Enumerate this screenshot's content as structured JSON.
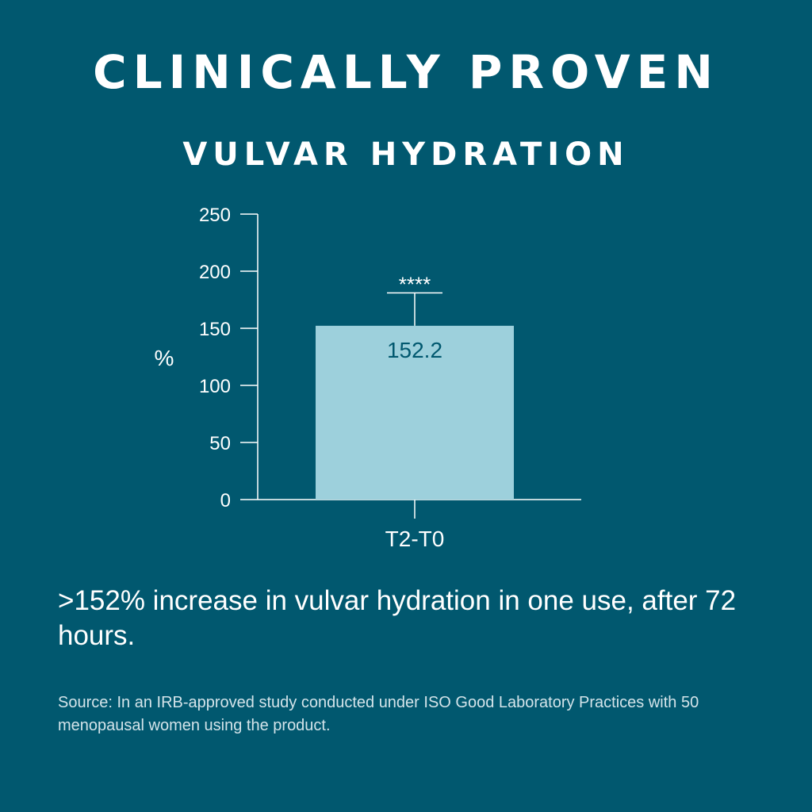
{
  "headline": "CLINICALLY PROVEN",
  "chart_data": {
    "type": "bar",
    "title": "VULVAR HYDRATION",
    "ylabel": "%",
    "xlabel": "",
    "categories": [
      "T2-T0"
    ],
    "values": [
      152.2
    ],
    "value_labels": [
      "152.2"
    ],
    "error_bar_top": [
      181
    ],
    "significance": [
      "****"
    ],
    "ylim": [
      0,
      250
    ],
    "yticks": [
      0,
      50,
      100,
      150,
      200,
      250
    ],
    "grid": false,
    "legend": "none",
    "colors": {
      "bar": "#9dd0dc",
      "axis": "#ffffff",
      "value_label": "#01586f",
      "background": "#01586f"
    }
  },
  "claim": ">152% increase in vulvar hydration in one use, after 72 hours.",
  "source": "Source: In an IRB-approved study conducted under ISO Good Laboratory Practices with 50 menopausal women using the product."
}
